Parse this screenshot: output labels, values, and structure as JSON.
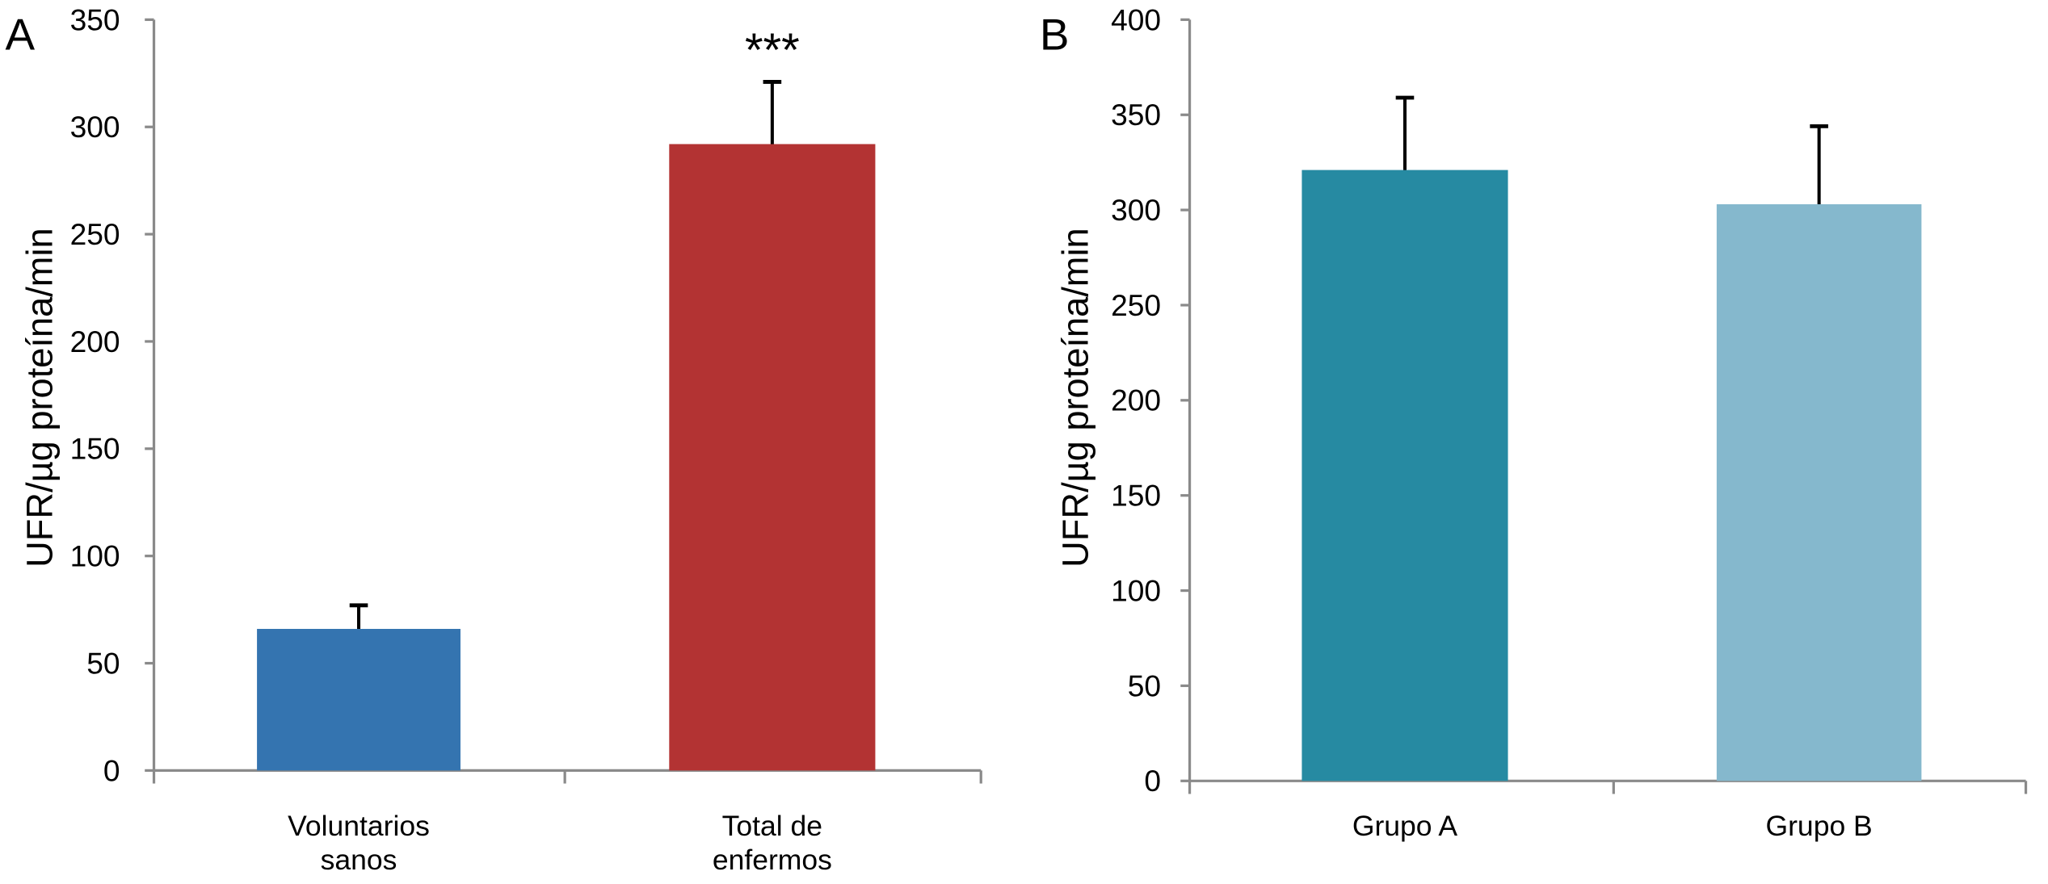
{
  "chart_data": [
    {
      "panel_label": "A",
      "type": "bar",
      "ylabel": "UFR/µg proteína/min",
      "ylim": [
        0,
        350
      ],
      "yticks": [
        0,
        50,
        100,
        150,
        200,
        250,
        300,
        350
      ],
      "categories": [
        [
          "Voluntarios",
          "sanos"
        ],
        [
          "Total de",
          "enfermos"
        ]
      ],
      "values": [
        66,
        292
      ],
      "error_upper": [
        11,
        29
      ],
      "colors": [
        "#3474b0",
        "#b33333"
      ],
      "annotations": [
        "",
        "***"
      ],
      "grid": false
    },
    {
      "panel_label": "B",
      "type": "bar",
      "ylabel": "UFR/µg proteína/min",
      "ylim": [
        0,
        400
      ],
      "yticks": [
        0,
        50,
        100,
        150,
        200,
        250,
        300,
        350,
        400
      ],
      "categories": [
        [
          "Grupo A"
        ],
        [
          "Grupo B"
        ]
      ],
      "values": [
        321,
        303
      ],
      "error_upper": [
        38,
        41
      ],
      "colors": [
        "#268aa2",
        "#85b8cd"
      ],
      "annotations": [
        "",
        ""
      ],
      "grid": false
    }
  ]
}
